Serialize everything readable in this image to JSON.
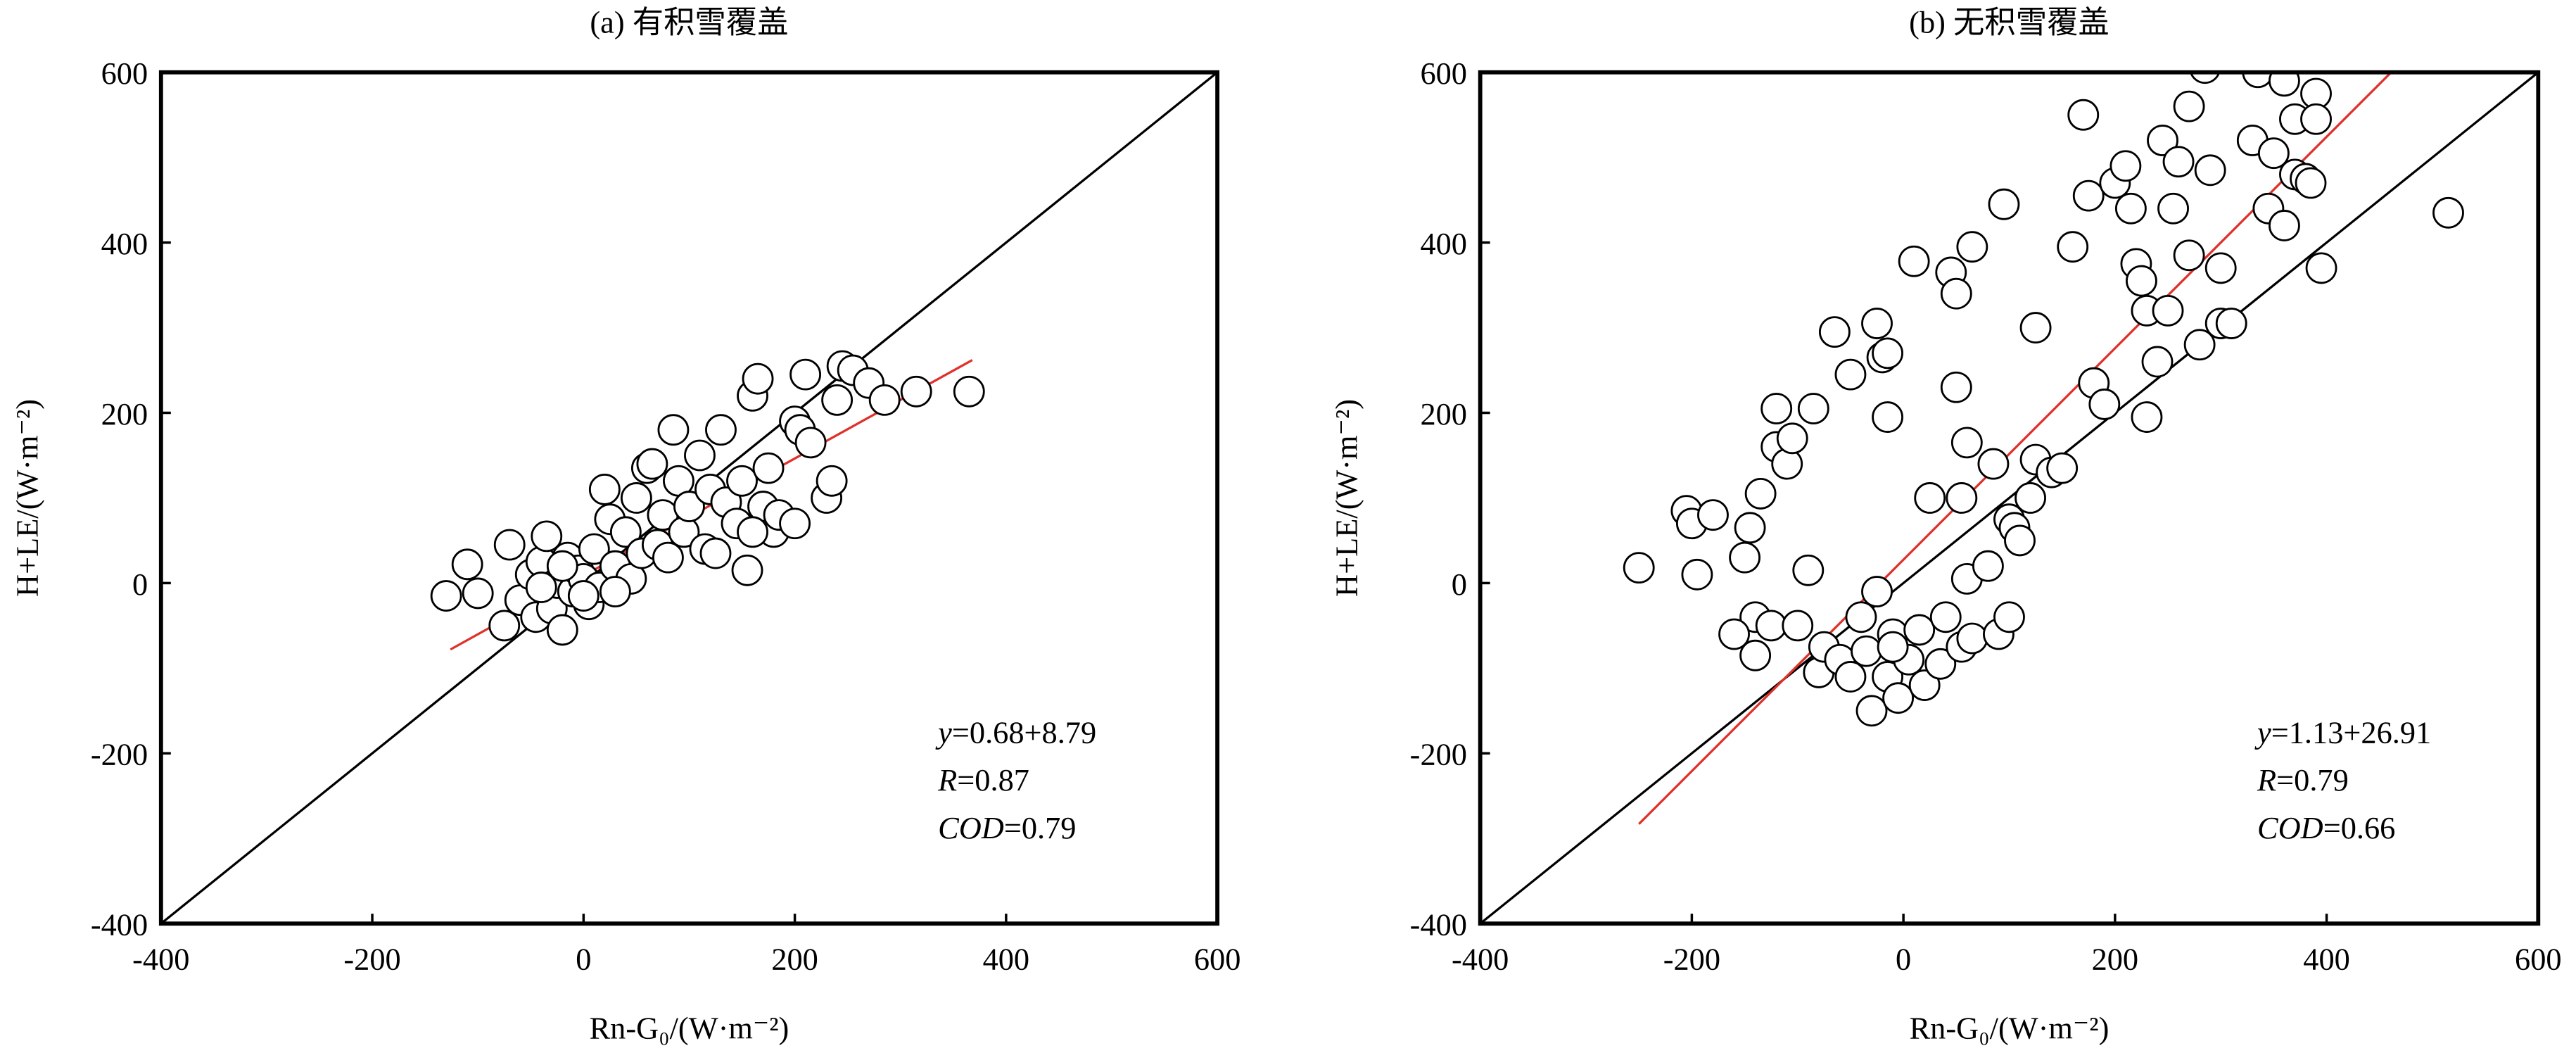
{
  "chart_data": [
    {
      "type": "scatter",
      "title": "(a) 有积雪覆盖",
      "x_label": "Rn-G₀/(W·m⁻²)",
      "y_label": "H+LE/(W·m⁻²)",
      "xlim": [
        -400,
        600
      ],
      "ylim": [
        -400,
        600
      ],
      "xticks": [
        -400,
        -200,
        0,
        200,
        400,
        600
      ],
      "yticks": [
        -400,
        -200,
        0,
        200,
        400,
        600
      ],
      "annotations": [
        "y=0.68+8.79",
        "R=0.87",
        "COD=0.79"
      ],
      "reference_line": {
        "color": "#000000",
        "x": [
          -400,
          600
        ],
        "y": [
          -400,
          600
        ]
      },
      "fit_line": {
        "color": "#e0302a",
        "x": [
          -126,
          368
        ],
        "y": [
          -78,
          262
        ]
      },
      "series": [
        {
          "marker_fill": "#ffffff",
          "marker_edge": "#000000",
          "x": [
            -130,
            -110,
            -100,
            -70,
            -75,
            -60,
            -50,
            -45,
            -40,
            -35,
            -30,
            -25,
            -20,
            -15,
            -10,
            -5,
            0,
            5,
            10,
            15,
            20,
            25,
            30,
            40,
            45,
            50,
            55,
            60,
            65,
            70,
            75,
            80,
            85,
            90,
            95,
            100,
            110,
            115,
            120,
            125,
            130,
            135,
            145,
            150,
            155,
            160,
            165,
            170,
            175,
            180,
            185,
            200,
            200,
            205,
            210,
            215,
            230,
            235,
            240,
            245,
            255,
            270,
            285,
            315,
            365,
            160,
            -20,
            0,
            30,
            -40
          ],
          "values": [
            -15,
            22,
            -12,
            45,
            -50,
            -20,
            10,
            -40,
            25,
            55,
            -30,
            0,
            -55,
            30,
            -10,
            15,
            5,
            -25,
            40,
            -5,
            110,
            75,
            20,
            60,
            5,
            100,
            35,
            135,
            140,
            45,
            80,
            30,
            180,
            120,
            60,
            90,
            150,
            40,
            110,
            35,
            180,
            95,
            70,
            120,
            15,
            220,
            240,
            90,
            135,
            60,
            80,
            190,
            70,
            180,
            245,
            165,
            100,
            120,
            215,
            255,
            250,
            235,
            215,
            225,
            225,
            60,
            20,
            -15,
            -10,
            -5
          ]
        }
      ]
    },
    {
      "type": "scatter",
      "title": "(b) 无积雪覆盖",
      "x_label": "Rn-G₀/(W·m⁻²)",
      "y_label": "H+LE/(W·m⁻²)",
      "xlim": [
        -400,
        600
      ],
      "ylim": [
        -400,
        600
      ],
      "xticks": [
        -400,
        -200,
        0,
        200,
        400,
        600
      ],
      "yticks": [
        -400,
        -200,
        0,
        200,
        400,
        600
      ],
      "annotations": [
        "y=1.13+26.91",
        "R=0.79",
        "COD=0.66"
      ],
      "reference_line": {
        "color": "#000000",
        "x": [
          -400,
          600
        ],
        "y": [
          -400,
          600
        ]
      },
      "fit_line": {
        "color": "#e0302a",
        "x": [
          -250,
          461
        ],
        "y": [
          -283,
          600
        ]
      },
      "series": [
        {
          "marker_fill": "#ffffff",
          "marker_edge": "#000000",
          "x": [
            -250,
            -205,
            -200,
            -195,
            -180,
            -150,
            -145,
            -140,
            -140,
            -135,
            -125,
            -120,
            -120,
            -110,
            -105,
            -100,
            -90,
            -85,
            -80,
            -75,
            -65,
            -60,
            -50,
            -50,
            -40,
            -35,
            -30,
            -25,
            -25,
            -20,
            -15,
            -15,
            -15,
            -10,
            -5,
            5,
            10,
            15,
            20,
            25,
            35,
            40,
            45,
            50,
            50,
            55,
            55,
            60,
            60,
            65,
            65,
            80,
            85,
            90,
            95,
            100,
            100,
            105,
            110,
            120,
            125,
            125,
            140,
            150,
            160,
            170,
            175,
            180,
            190,
            200,
            210,
            215,
            220,
            225,
            230,
            230,
            240,
            245,
            250,
            255,
            260,
            270,
            270,
            280,
            285,
            290,
            300,
            300,
            310,
            330,
            335,
            345,
            350,
            360,
            360,
            370,
            370,
            380,
            385,
            390,
            390,
            395,
            515,
            -160,
            -10
          ],
          "values": [
            18,
            85,
            70,
            10,
            80,
            30,
            65,
            -40,
            -85,
            105,
            -50,
            205,
            160,
            140,
            170,
            -50,
            15,
            205,
            -105,
            -75,
            295,
            -90,
            245,
            -110,
            -40,
            -80,
            -150,
            305,
            -10,
            265,
            195,
            270,
            -110,
            -60,
            -135,
            -90,
            378,
            -55,
            -120,
            100,
            -95,
            -40,
            365,
            340,
            230,
            100,
            -75,
            165,
            5,
            395,
            -65,
            20,
            140,
            -60,
            445,
            -40,
            75,
            65,
            50,
            100,
            300,
            145,
            130,
            135,
            395,
            550,
            455,
            235,
            210,
            470,
            490,
            440,
            375,
            355,
            320,
            195,
            260,
            520,
            320,
            440,
            495,
            560,
            385,
            280,
            605,
            485,
            370,
            305,
            305,
            520,
            600,
            440,
            505,
            420,
            590,
            545,
            480,
            475,
            470,
            575,
            545,
            370,
            435,
            -60,
            -75
          ]
        }
      ]
    }
  ]
}
